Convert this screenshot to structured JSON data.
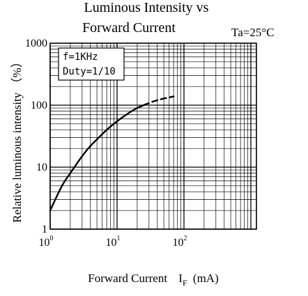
{
  "chart_data": {
    "type": "line",
    "title_line1": "Luminous Intensity vs",
    "title_line2": "Forward Current",
    "condition": "Ta=25°C",
    "xlabel_main": "Forward Current",
    "xlabel_symbol": "I",
    "xlabel_subscript": "F",
    "xlabel_unit": "(mA)",
    "ylabel": "Relative luminous intensity （%）",
    "x_scale": "log",
    "y_scale": "log",
    "xlim": [
      1,
      100
    ],
    "ylim": [
      1,
      1000
    ],
    "x_tick_labels": [
      {
        "base": "10",
        "exp": "0",
        "value": 1
      },
      {
        "base": "10",
        "exp": "1",
        "value": 10
      },
      {
        "base": "10",
        "exp": "2",
        "value": 100
      }
    ],
    "y_tick_labels": [
      {
        "text": "1",
        "value": 1
      },
      {
        "text": "10",
        "value": 10
      },
      {
        "text": "100",
        "value": 100
      },
      {
        "text": "1000",
        "value": 1000
      }
    ],
    "annotation_lines": [
      "f=1KHz",
      "Duty=1/10"
    ],
    "grid": true,
    "series": [
      {
        "style": "solid",
        "points": [
          [
            1,
            2
          ],
          [
            1.5,
            5
          ],
          [
            2,
            8
          ],
          [
            3,
            15
          ],
          [
            4,
            22
          ],
          [
            5,
            28
          ],
          [
            7,
            40
          ],
          [
            10,
            55
          ],
          [
            15,
            75
          ],
          [
            20,
            90
          ],
          [
            25,
            100
          ]
        ]
      },
      {
        "style": "dashed",
        "points": [
          [
            25,
            100
          ],
          [
            35,
            115
          ],
          [
            50,
            128
          ],
          [
            70,
            138
          ]
        ]
      }
    ]
  }
}
